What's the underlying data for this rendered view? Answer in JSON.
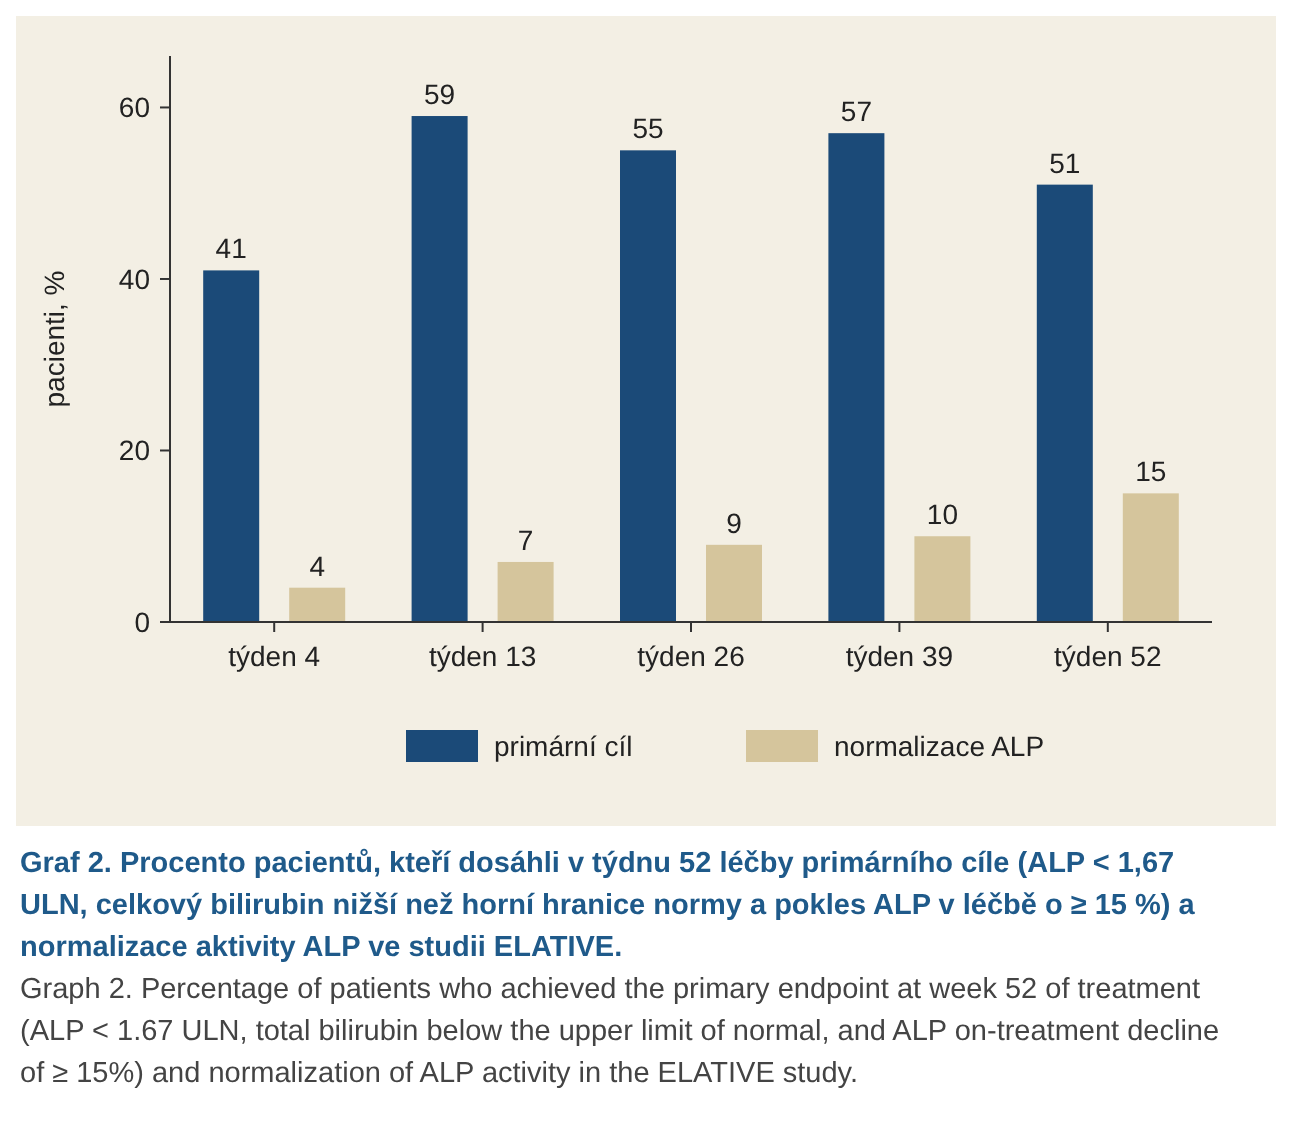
{
  "chart_data": {
    "type": "bar",
    "title": "Graf 2. Procento pacientů, kteří dosáhli v týdnu 52 léčby primárního cíle (ALP < 1,67 ULN, celkový bilirubin nižší než horní hranice normy a pokles ALP v léčbě o ≥ 15 %) a normalizace aktivity ALP ve studii ELATIVE.",
    "annotations": [
      "Graph 2. Percentage of patients who achieved the primary endpoint at week 52 of treatment (ALP < 1.67 ULN, total bilirubin below the upper limit of normal, and ALP on-treatment decline of ≥ 15%) and normalization of ALP activity in the ELATIVE study."
    ],
    "ylabel": "pacienti, %",
    "categories": [
      "týden 4",
      "týden 13",
      "týden 26",
      "týden 39",
      "týden 52"
    ],
    "series": [
      {
        "name": "primární cíl",
        "color": "#1b4a78",
        "values": [
          41,
          59,
          55,
          57,
          51
        ]
      },
      {
        "name": "normalizace ALP",
        "color": "#d5c59c",
        "values": [
          4,
          7,
          9,
          10,
          15
        ]
      }
    ],
    "ylim": [
      0,
      66
    ],
    "yticks": [
      0,
      20,
      40,
      60
    ],
    "data_labels": true,
    "legend": "bottom",
    "grid": false
  }
}
